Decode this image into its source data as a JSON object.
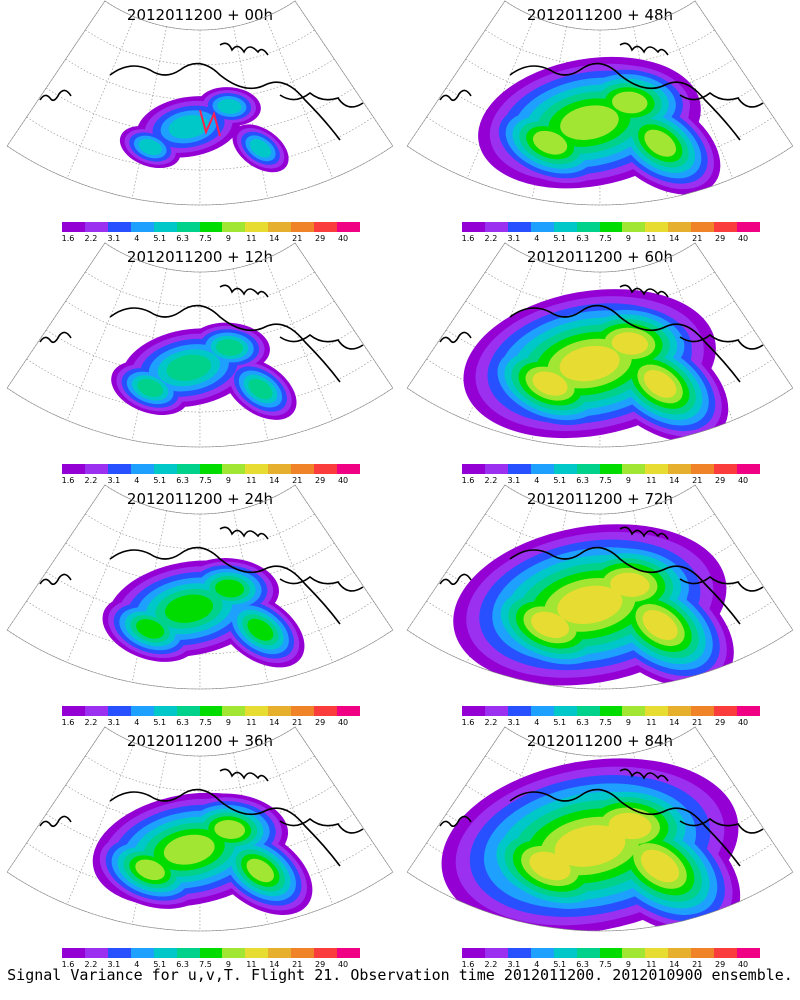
{
  "panels": [
    {
      "title": "2012011200 + 00h",
      "spread": 0.35,
      "intensity": 0.25,
      "has_track": true
    },
    {
      "title": "2012011200 + 48h",
      "spread": 0.75,
      "intensity": 0.65,
      "has_track": false
    },
    {
      "title": "2012011200 + 12h",
      "spread": 0.45,
      "intensity": 0.4,
      "has_track": false
    },
    {
      "title": "2012011200 + 60h",
      "spread": 0.85,
      "intensity": 0.7,
      "has_track": false
    },
    {
      "title": "2012011200 + 24h",
      "spread": 0.55,
      "intensity": 0.5,
      "has_track": false
    },
    {
      "title": "2012011200 + 72h",
      "spread": 0.92,
      "intensity": 0.75,
      "has_track": false
    },
    {
      "title": "2012011200 + 36h",
      "spread": 0.65,
      "intensity": 0.6,
      "has_track": false
    },
    {
      "title": "2012011200 + 84h",
      "spread": 1.0,
      "intensity": 0.8,
      "has_track": false
    }
  ],
  "colorbar": {
    "labels": [
      "1.6",
      "2.2",
      "3.1",
      "4",
      "5.1",
      "6.3",
      "7.5",
      "9",
      "11",
      "14",
      "21",
      "29",
      "40"
    ],
    "colors": [
      "#9400d3",
      "#9b30f0",
      "#2850ff",
      "#1ea0ff",
      "#00c8c8",
      "#00d28c",
      "#00dc00",
      "#a0e632",
      "#e6dc32",
      "#e6af2d",
      "#f08228",
      "#fa3c3c",
      "#f00082"
    ]
  },
  "footer": "Signal Variance for u,v,T. Flight 21. Observation time 2012011200. 2012010900 ensemble."
}
